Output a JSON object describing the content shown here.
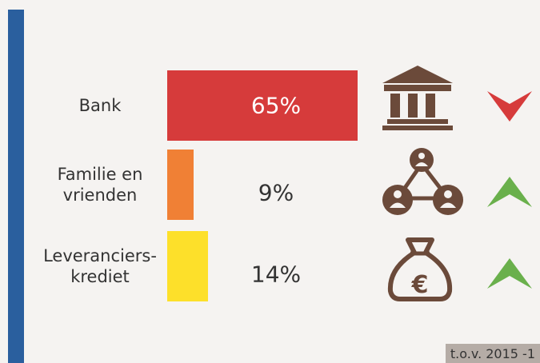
{
  "chart_data": {
    "type": "bar",
    "categories": [
      "Bank",
      "Familie en\nvrienden",
      "Leveranciers-\nkrediet"
    ],
    "values": [
      65,
      9,
      14
    ],
    "value_labels": [
      "65%",
      "9%",
      "14%"
    ],
    "colors": [
      "#d63b3b",
      "#f08035",
      "#fde02a"
    ],
    "trend": [
      "down",
      "up",
      "up"
    ],
    "trend_colors": {
      "up": "#6ab04c",
      "down": "#d63b3b"
    },
    "footnote": "t.o.v. 2015 -1"
  }
}
